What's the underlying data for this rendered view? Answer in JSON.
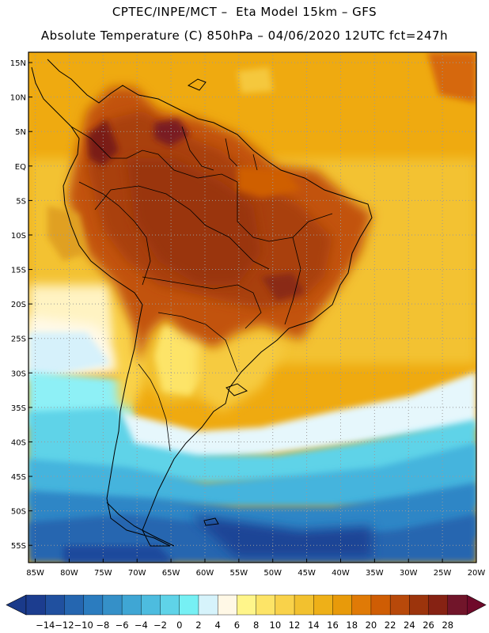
{
  "header": {
    "line1": "CPTEC/INPE/MCT –  Eta Model 15km – GFS",
    "line2": "Absolute Temperature (C) 850hPa – 04/06/2020 12UTC fct=247h"
  },
  "map": {
    "lat_labels": [
      "15N",
      "10N",
      "5N",
      "EQ",
      "5S",
      "10S",
      "15S",
      "20S",
      "25S",
      "30S",
      "35S",
      "40S",
      "45S",
      "50S",
      "55S"
    ],
    "lon_labels": [
      "85W",
      "80W",
      "75W",
      "70W",
      "65W",
      "60W",
      "55W",
      "50W",
      "45W",
      "40W",
      "35W",
      "30W",
      "25W",
      "20W"
    ],
    "lat_extent": [
      -57.5,
      16.5
    ],
    "lon_extent": [
      -86,
      -20
    ]
  },
  "colorbar": {
    "labels": [
      "-14",
      "-12",
      "-10",
      "-8",
      "-6",
      "-4",
      "-2",
      "0",
      "2",
      "4",
      "6",
      "8",
      "10",
      "12",
      "14",
      "16",
      "18",
      "20",
      "22",
      "24",
      "26",
      "28"
    ],
    "colors": [
      "#1c3d8f",
      "#20509f",
      "#2566b0",
      "#2b7cbf",
      "#3590c8",
      "#3fa6d4",
      "#4dbcdf",
      "#5fd3e8",
      "#76f0f4",
      "#d6f3fb",
      "#fff8e6",
      "#fff58a",
      "#fde467",
      "#f9d24a",
      "#f2c12f",
      "#eeb018",
      "#e89a0a",
      "#e07a06",
      "#cf5d04",
      "#b8490a",
      "#9c340c",
      "#862213",
      "#71152a"
    ],
    "under_color": "#1a3a8a",
    "over_color": "#6f0a2a"
  },
  "colors": {
    "ocean_north": "#f0ad12",
    "ocean_mid": "#f2c334",
    "land_hot": "#c0500a",
    "land_hotter": "#9a3a0c",
    "coast": "#000000"
  }
}
